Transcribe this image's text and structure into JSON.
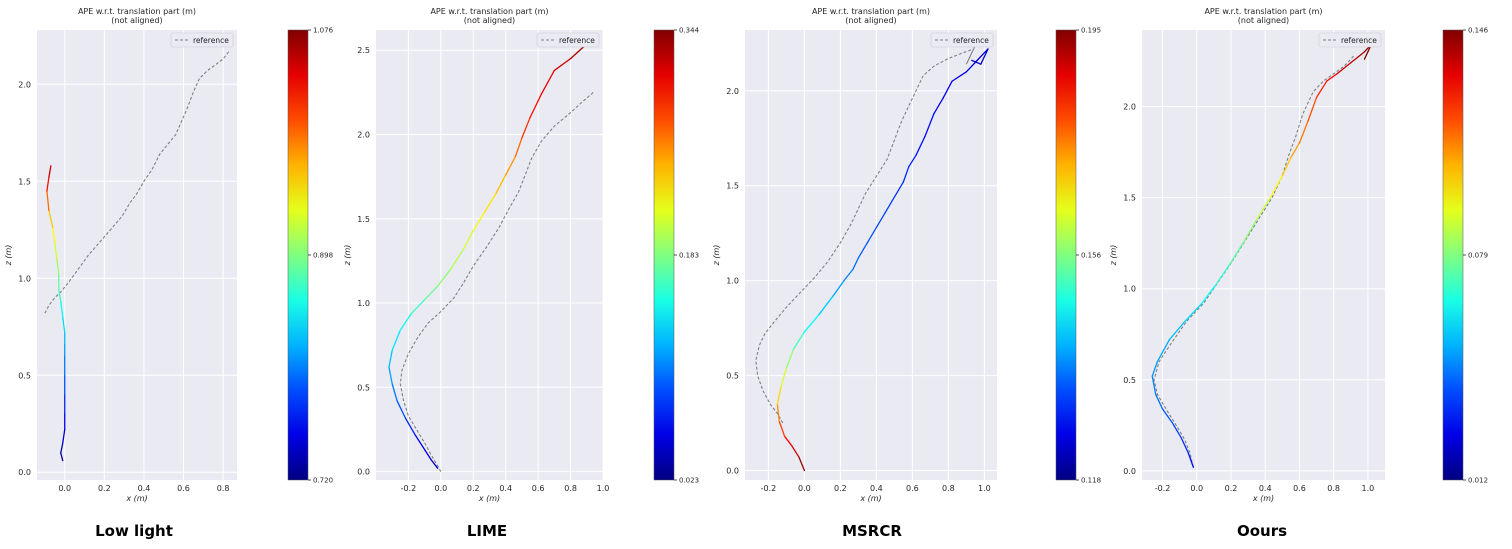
{
  "captions": [
    "Low light",
    "LIME",
    "MSRCR",
    "Oours"
  ],
  "legend_label": "reference",
  "chart_data": [
    {
      "type": "line",
      "title": "APE w.r.t. translation part (m)",
      "subtitle": "(not aligned)",
      "xlabel": "x (m)",
      "ylabel": "z (m)",
      "xlim": [
        -0.14,
        0.87
      ],
      "ylim": [
        -0.04,
        2.28
      ],
      "xticks": [
        0.0,
        0.2,
        0.4,
        0.6,
        0.8
      ],
      "xtick_labels": [
        "0.0",
        "0.2",
        "0.4",
        "0.6",
        "0.8"
      ],
      "yticks": [
        0.0,
        0.5,
        1.0,
        1.5,
        2.0
      ],
      "ytick_labels": [
        "0.0",
        "0.5",
        "1.0",
        "1.5",
        "2.0"
      ],
      "grid": true,
      "legend": "top-right",
      "reference": {
        "x": [
          -0.1,
          -0.08,
          -0.05,
          -0.02,
          0.02,
          0.07,
          0.12,
          0.18,
          0.24,
          0.29,
          0.33,
          0.36,
          0.4,
          0.44,
          0.48,
          0.52,
          0.56,
          0.59,
          0.62,
          0.65,
          0.68,
          0.72,
          0.76,
          0.8,
          0.83
        ],
        "y": [
          0.82,
          0.86,
          0.9,
          0.93,
          0.98,
          1.05,
          1.12,
          1.19,
          1.26,
          1.32,
          1.39,
          1.43,
          1.5,
          1.56,
          1.64,
          1.69,
          1.74,
          1.81,
          1.88,
          1.96,
          2.03,
          2.07,
          2.1,
          2.13,
          2.17
        ]
      },
      "estimate": {
        "x": [
          -0.01,
          -0.02,
          -0.01,
          0.0,
          0.0,
          0.0,
          0.0,
          0.0,
          0.0,
          0.0,
          -0.01,
          -0.02,
          -0.03,
          -0.03,
          -0.04,
          -0.05,
          -0.06,
          -0.08,
          -0.09,
          -0.08,
          -0.07
        ],
        "y": [
          0.06,
          0.1,
          0.15,
          0.22,
          0.3,
          0.4,
          0.5,
          0.6,
          0.66,
          0.72,
          0.8,
          0.88,
          0.94,
          1.02,
          1.1,
          1.18,
          1.26,
          1.35,
          1.45,
          1.52,
          1.58
        ],
        "error": [
          0.0,
          0.03,
          0.06,
          0.1,
          0.14,
          0.18,
          0.22,
          0.26,
          0.29,
          0.32,
          0.36,
          0.4,
          0.44,
          0.5,
          0.56,
          0.6,
          0.64,
          0.72,
          0.82,
          0.9,
          0.95
        ]
      },
      "colorbar": {
        "min_label": "0.720",
        "mid_label": "0.898",
        "max_label": "1.076"
      }
    },
    {
      "type": "line",
      "title": "APE w.r.t. translation part (m)",
      "subtitle": "(not aligned)",
      "xlabel": "x (m)",
      "ylabel": "z (m)",
      "xlim": [
        -0.4,
        1.0
      ],
      "ylim": [
        -0.05,
        2.62
      ],
      "xticks": [
        -0.2,
        0.0,
        0.2,
        0.4,
        0.6,
        0.8,
        1.0
      ],
      "xtick_labels": [
        "-0.2",
        "0.0",
        "0.2",
        "0.4",
        "0.6",
        "0.8",
        "1.0"
      ],
      "yticks": [
        0.0,
        0.5,
        1.0,
        1.5,
        2.0,
        2.5
      ],
      "ytick_labels": [
        "0.0",
        "0.5",
        "1.0",
        "1.5",
        "2.0",
        "2.5"
      ],
      "grid": true,
      "legend": "top-right",
      "reference": {
        "x": [
          0.0,
          -0.03,
          -0.06,
          -0.1,
          -0.15,
          -0.2,
          -0.23,
          -0.25,
          -0.24,
          -0.2,
          -0.14,
          -0.08,
          0.0,
          0.08,
          0.14,
          0.2,
          0.28,
          0.36,
          0.42,
          0.48,
          0.52,
          0.56,
          0.62,
          0.7,
          0.8,
          0.88,
          0.94
        ],
        "y": [
          0.0,
          0.05,
          0.1,
          0.17,
          0.25,
          0.33,
          0.42,
          0.52,
          0.6,
          0.7,
          0.8,
          0.88,
          0.95,
          1.03,
          1.12,
          1.22,
          1.33,
          1.45,
          1.56,
          1.66,
          1.76,
          1.86,
          1.96,
          2.05,
          2.13,
          2.2,
          2.25
        ]
      },
      "estimate": {
        "x": [
          -0.02,
          -0.06,
          -0.1,
          -0.16,
          -0.22,
          -0.27,
          -0.3,
          -0.32,
          -0.3,
          -0.25,
          -0.18,
          -0.1,
          -0.02,
          0.06,
          0.14,
          0.2,
          0.27,
          0.34,
          0.4,
          0.46,
          0.5,
          0.55,
          0.62,
          0.7,
          0.8,
          0.88,
          0.94
        ],
        "y": [
          0.02,
          0.07,
          0.13,
          0.22,
          0.32,
          0.42,
          0.52,
          0.62,
          0.72,
          0.84,
          0.94,
          1.02,
          1.1,
          1.2,
          1.32,
          1.43,
          1.54,
          1.65,
          1.76,
          1.87,
          1.98,
          2.1,
          2.24,
          2.38,
          2.45,
          2.52,
          2.57
        ],
        "error": [
          0.05,
          0.07,
          0.1,
          0.14,
          0.18,
          0.22,
          0.26,
          0.3,
          0.33,
          0.37,
          0.41,
          0.45,
          0.49,
          0.53,
          0.57,
          0.6,
          0.63,
          0.67,
          0.71,
          0.75,
          0.8,
          0.85,
          0.88,
          0.91,
          0.94,
          0.97,
          1.0
        ]
      },
      "colorbar": {
        "min_label": "0.023",
        "mid_label": "0.183",
        "max_label": "0.344"
      }
    },
    {
      "type": "line",
      "title": "APE w.r.t. translation part (m)",
      "subtitle": "(not aligned)",
      "xlabel": "x (m)",
      "ylabel": "z (m)",
      "xlim": [
        -0.33,
        1.07
      ],
      "ylim": [
        -0.05,
        2.32
      ],
      "xticks": [
        -0.2,
        0.0,
        0.2,
        0.4,
        0.6,
        0.8,
        1.0
      ],
      "xtick_labels": [
        "-0.2",
        "0.0",
        "0.2",
        "0.4",
        "0.6",
        "0.8",
        "1.0"
      ],
      "yticks": [
        0.0,
        0.5,
        1.0,
        1.5,
        2.0
      ],
      "ytick_labels": [
        "0.0",
        "0.5",
        "1.0",
        "1.5",
        "2.0"
      ],
      "grid": true,
      "legend": "top-right",
      "reference": {
        "x": [
          -0.12,
          -0.15,
          -0.19,
          -0.23,
          -0.26,
          -0.27,
          -0.25,
          -0.22,
          -0.17,
          -0.1,
          -0.02,
          0.06,
          0.13,
          0.2,
          0.26,
          0.3,
          0.34,
          0.4,
          0.46,
          0.5,
          0.54,
          0.58,
          0.62,
          0.66,
          0.72,
          0.8,
          0.88,
          0.94,
          0.9,
          0.96
        ],
        "y": [
          0.25,
          0.3,
          0.35,
          0.42,
          0.5,
          0.58,
          0.66,
          0.72,
          0.78,
          0.86,
          0.94,
          1.02,
          1.1,
          1.2,
          1.3,
          1.38,
          1.46,
          1.55,
          1.64,
          1.74,
          1.84,
          1.92,
          2.0,
          2.08,
          2.13,
          2.17,
          2.2,
          2.22,
          2.14,
          2.26
        ]
      },
      "estimate": {
        "x": [
          0.0,
          -0.03,
          -0.07,
          -0.11,
          -0.14,
          -0.15,
          -0.13,
          -0.1,
          -0.06,
          0.0,
          0.08,
          0.16,
          0.22,
          0.27,
          0.3,
          0.35,
          0.4,
          0.45,
          0.5,
          0.55,
          0.58,
          0.62,
          0.67,
          0.72,
          0.77,
          0.82,
          0.9,
          0.96,
          1.02,
          0.98,
          0.93
        ],
        "y": [
          0.0,
          0.07,
          0.13,
          0.18,
          0.26,
          0.35,
          0.44,
          0.54,
          0.64,
          0.73,
          0.82,
          0.92,
          1.0,
          1.06,
          1.12,
          1.2,
          1.28,
          1.36,
          1.44,
          1.52,
          1.6,
          1.66,
          1.76,
          1.88,
          1.96,
          2.05,
          2.1,
          2.16,
          2.22,
          2.14,
          2.16
        ],
        "error": [
          1.0,
          0.95,
          0.9,
          0.85,
          0.78,
          0.7,
          0.62,
          0.55,
          0.48,
          0.4,
          0.35,
          0.3,
          0.26,
          0.24,
          0.22,
          0.21,
          0.2,
          0.19,
          0.18,
          0.17,
          0.16,
          0.15,
          0.14,
          0.13,
          0.12,
          0.11,
          0.1,
          0.09,
          0.08,
          0.08,
          0.08
        ]
      },
      "colorbar": {
        "min_label": "0.118",
        "mid_label": "0.156",
        "max_label": "0.195"
      }
    },
    {
      "type": "line",
      "title": "APE w.r.t. translation part (m)",
      "subtitle": "(not aligned)",
      "xlabel": "x (m)",
      "ylabel": "z (m)",
      "xlim": [
        -0.32,
        1.1
      ],
      "ylim": [
        -0.05,
        2.42
      ],
      "xticks": [
        -0.2,
        0.0,
        0.2,
        0.4,
        0.6,
        0.8,
        1.0
      ],
      "xtick_labels": [
        "-0.2",
        "0.0",
        "0.2",
        "0.4",
        "0.6",
        "0.8",
        "1.0"
      ],
      "yticks": [
        0.0,
        0.5,
        1.0,
        1.5,
        2.0
      ],
      "ytick_labels": [
        "0.0",
        "0.5",
        "1.0",
        "1.5",
        "2.0"
      ],
      "grid": true,
      "legend": "top-right",
      "reference": {
        "x": [
          -0.02,
          -0.04,
          -0.07,
          -0.12,
          -0.18,
          -0.23,
          -0.25,
          -0.22,
          -0.15,
          -0.06,
          0.04,
          0.12,
          0.2,
          0.28,
          0.36,
          0.44,
          0.5,
          0.54,
          0.58,
          0.62,
          0.68,
          0.74,
          0.8,
          0.86,
          0.92
        ],
        "y": [
          0.02,
          0.1,
          0.17,
          0.25,
          0.34,
          0.42,
          0.5,
          0.6,
          0.7,
          0.82,
          0.92,
          1.03,
          1.14,
          1.26,
          1.38,
          1.5,
          1.62,
          1.74,
          1.84,
          1.96,
          2.08,
          2.14,
          2.18,
          2.22,
          2.28
        ]
      },
      "estimate": {
        "x": [
          -0.02,
          -0.05,
          -0.09,
          -0.14,
          -0.2,
          -0.24,
          -0.26,
          -0.23,
          -0.16,
          -0.07,
          0.03,
          0.11,
          0.19,
          0.27,
          0.35,
          0.43,
          0.5,
          0.55,
          0.6,
          0.65,
          0.7,
          0.76,
          0.82,
          0.9,
          0.98,
          1.02,
          0.98
        ],
        "y": [
          0.02,
          0.1,
          0.18,
          0.26,
          0.34,
          0.42,
          0.52,
          0.6,
          0.72,
          0.82,
          0.92,
          1.02,
          1.13,
          1.25,
          1.38,
          1.5,
          1.62,
          1.72,
          1.8,
          1.92,
          2.05,
          2.14,
          2.18,
          2.24,
          2.3,
          2.34,
          2.26
        ],
        "error": [
          0.12,
          0.15,
          0.18,
          0.2,
          0.22,
          0.24,
          0.26,
          0.28,
          0.3,
          0.33,
          0.36,
          0.4,
          0.44,
          0.48,
          0.54,
          0.6,
          0.65,
          0.7,
          0.74,
          0.78,
          0.82,
          0.86,
          0.9,
          0.94,
          0.97,
          1.0,
          1.0
        ]
      },
      "colorbar": {
        "min_label": "0.012",
        "mid_label": "0.079",
        "max_label": "0.146"
      }
    }
  ]
}
